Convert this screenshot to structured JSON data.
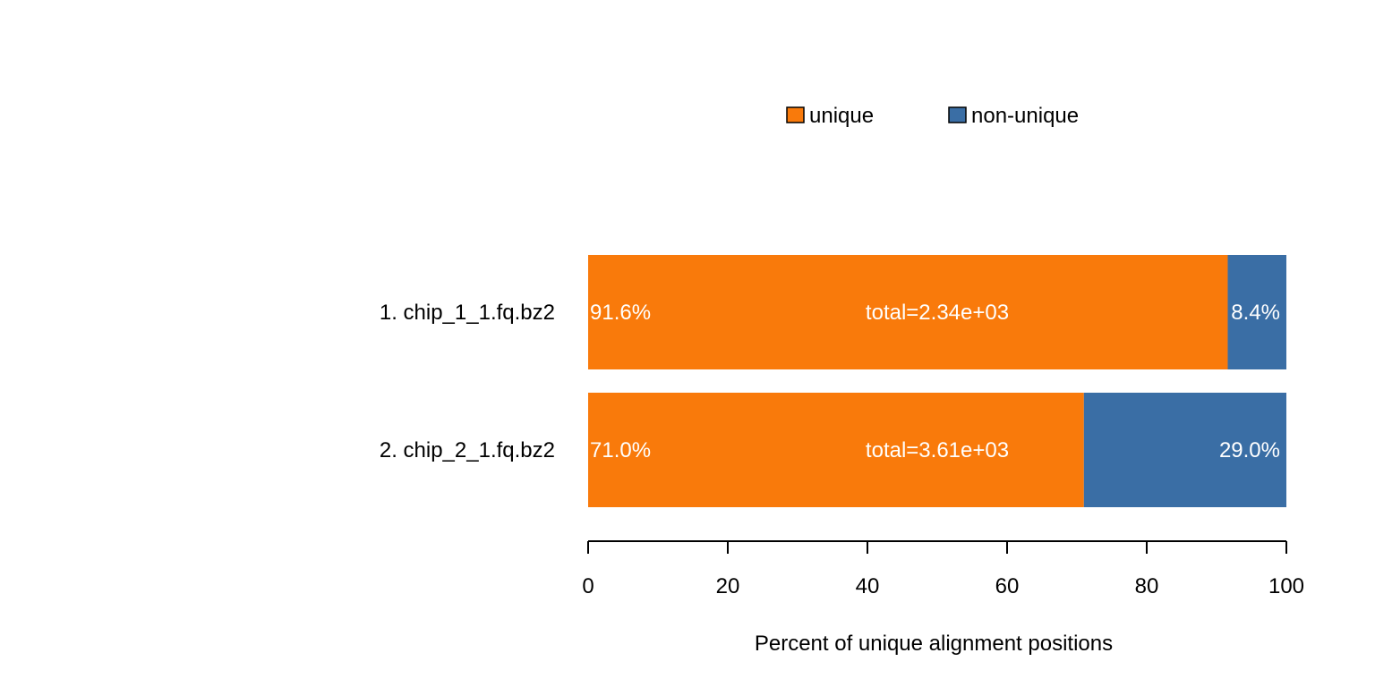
{
  "chart_data": {
    "type": "bar",
    "orientation": "horizontal",
    "stacked": true,
    "title": "",
    "xlabel": "Percent of unique alignment positions",
    "ylabel": "",
    "xlim": [
      0,
      100
    ],
    "x_ticks": [
      0,
      20,
      40,
      60,
      80,
      100
    ],
    "categories": [
      "1. chip_1_1.fq.bz2",
      "2. chip_2_1.fq.bz2"
    ],
    "series": [
      {
        "name": "unique",
        "color": "#f97a0b",
        "values": [
          91.6,
          71.0
        ],
        "labels": [
          "91.6%",
          "71.0%"
        ]
      },
      {
        "name": "non-unique",
        "color": "#3a6ea5",
        "values": [
          8.4,
          29.0
        ],
        "labels": [
          "8.4%",
          "29.0%"
        ]
      }
    ],
    "totals": [
      "total=2.34e+03",
      "total=3.61e+03"
    ],
    "legend_position": "top",
    "grid": false
  }
}
